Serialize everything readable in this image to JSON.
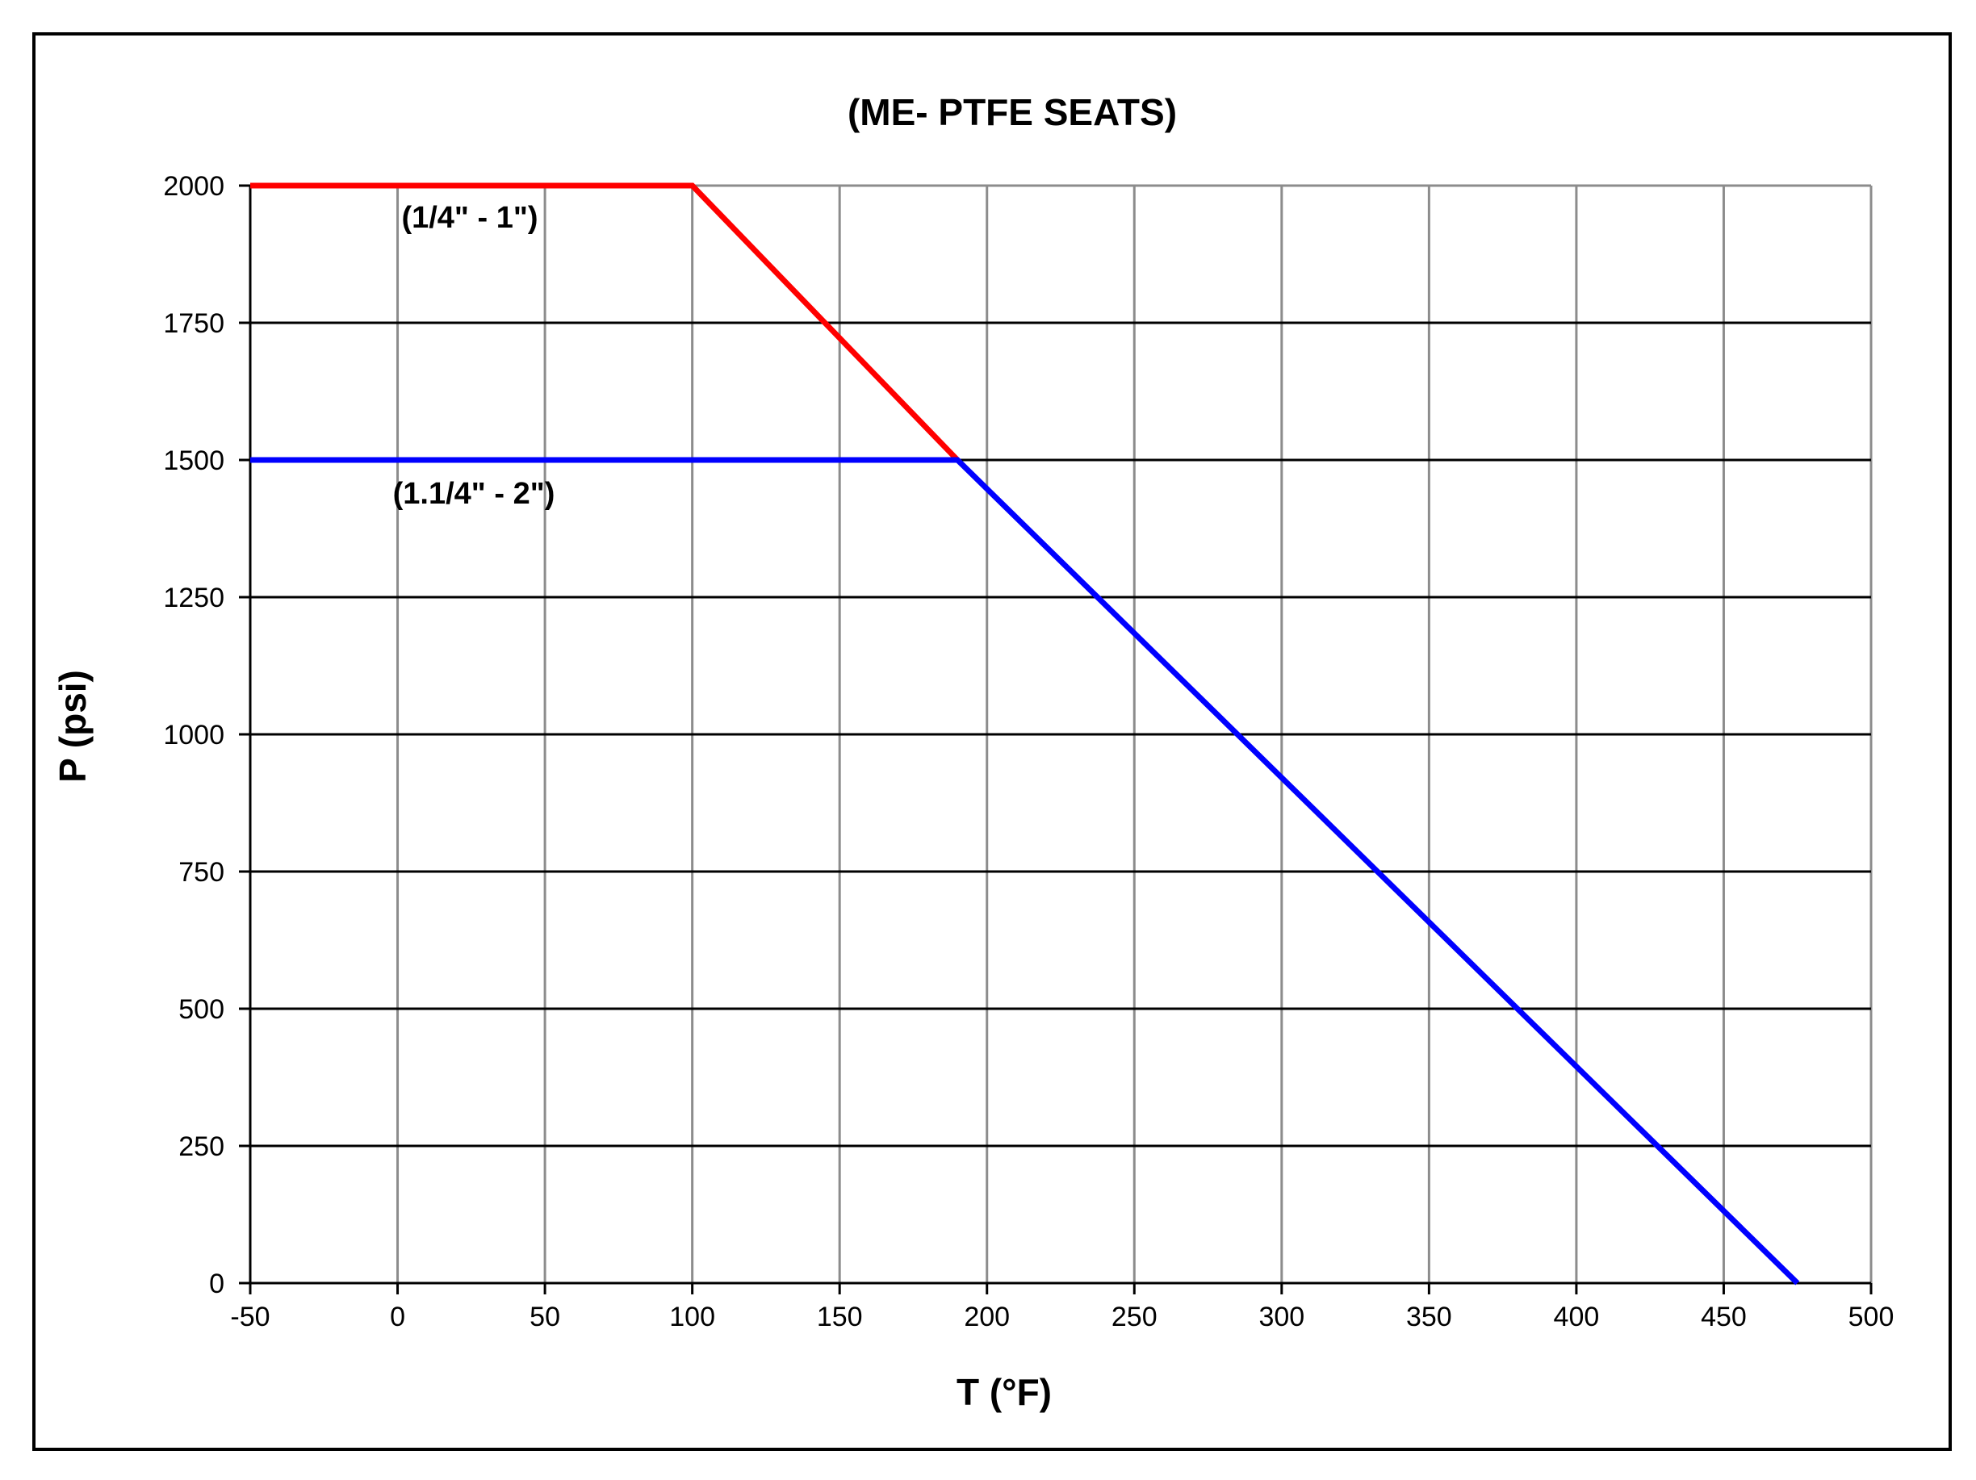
{
  "chart_data": {
    "type": "line",
    "title": "(ME- PTFE SEATS)",
    "xlabel": "T (°F)",
    "ylabel": "P (psi)",
    "xlim": [
      -50,
      500
    ],
    "ylim": [
      0,
      2000
    ],
    "x_ticks": [
      -50,
      0,
      50,
      100,
      150,
      200,
      250,
      300,
      350,
      400,
      450,
      500
    ],
    "y_ticks": [
      0,
      250,
      500,
      750,
      1000,
      1250,
      1500,
      1750,
      2000
    ],
    "grid": true,
    "legend": "none",
    "series": [
      {
        "name": "(1/4\" - 1\")",
        "color": "#ff0000",
        "x": [
          -50,
          100,
          190
        ],
        "y": [
          2000,
          2000,
          1500
        ]
      },
      {
        "name": "(1.1/4\" - 2\")",
        "color": "#0000ff",
        "x": [
          -50,
          190,
          475
        ],
        "y": [
          1500,
          1500,
          0
        ]
      }
    ]
  }
}
